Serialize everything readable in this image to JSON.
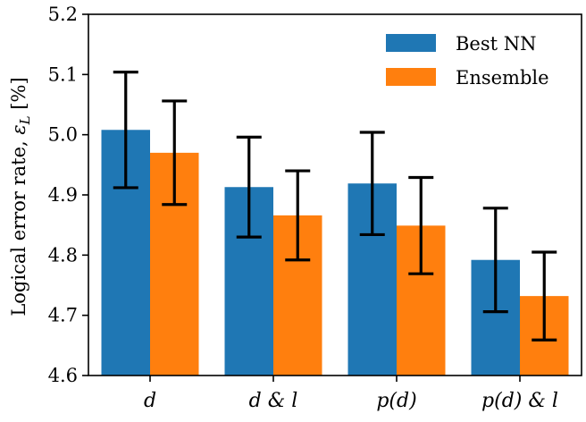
{
  "chart_data": {
    "type": "bar",
    "categories": [
      "d",
      "d & l",
      "p(d)",
      "p(d) & l"
    ],
    "series": [
      {
        "name": "Best NN",
        "color": "#1f77b4",
        "values": [
          5.008,
          4.913,
          4.919,
          4.792
        ],
        "errors": [
          0.096,
          0.083,
          0.085,
          0.086
        ]
      },
      {
        "name": "Ensemble",
        "color": "#ff7f0e",
        "values": [
          4.97,
          4.866,
          4.849,
          4.732
        ],
        "errors": [
          0.086,
          0.074,
          0.08,
          0.073
        ]
      }
    ],
    "ylabel": "Logical error rate, εL [%]",
    "ylabel_main": "Logical error rate, ",
    "ylabel_symbol": "ε",
    "ylabel_subscript": "L",
    "ylabel_unit": " [%]",
    "ylim": [
      4.6,
      5.2
    ],
    "yticks": [
      "4.6",
      "4.7",
      "4.8",
      "4.9",
      "5.0",
      "5.1",
      "5.2"
    ],
    "legend_position": "top-right",
    "grid": false
  }
}
